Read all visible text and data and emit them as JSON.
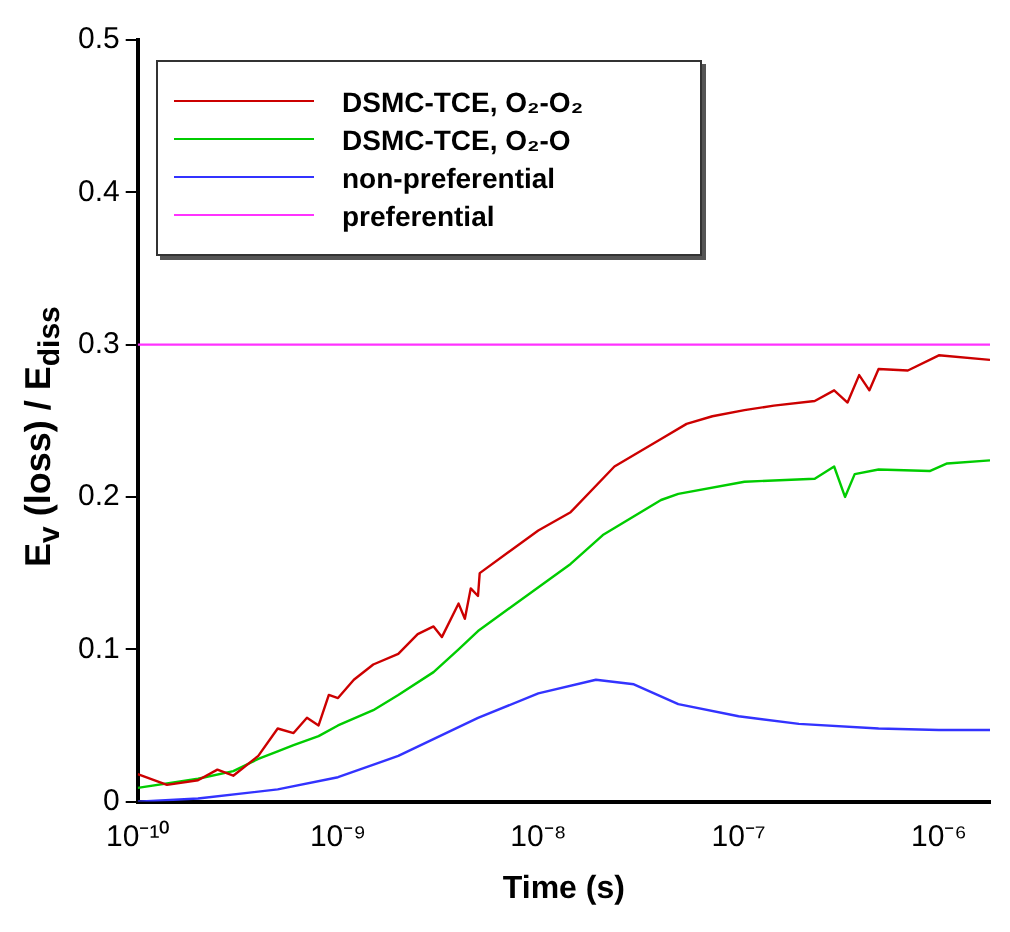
{
  "chart_data": {
    "type": "line",
    "xlabel": "Time (s)",
    "ylabel": "E$_{v}$ (loss) / E$_{diss}$",
    "log": "x",
    "xlim": [
      1e-10,
      1.8e-06
    ],
    "ylim": [
      0,
      0.5
    ],
    "xticks": [
      {
        "value": 1e-10,
        "label": "10⁻¹⁰"
      },
      {
        "value": 1e-09,
        "label": "10⁻⁹"
      },
      {
        "value": 1e-08,
        "label": "10⁻⁸"
      },
      {
        "value": 1e-07,
        "label": "10⁻⁷"
      },
      {
        "value": 1e-06,
        "label": "10⁻⁶"
      }
    ],
    "yticks": [
      0,
      0.1,
      0.2,
      0.3,
      0.4,
      0.5
    ],
    "grid": false,
    "legend": "top left",
    "marker": "none",
    "line_style": "solid",
    "series": [
      {
        "name": "DSMC-TCE, O₂-O₂",
        "color": "#cc0000",
        "x": [
          1e-10,
          1.4e-10,
          2e-10,
          2.5e-10,
          3e-10,
          4e-10,
          5e-10,
          6e-10,
          7e-10,
          8e-10,
          9e-10,
          1e-09,
          1.2e-09,
          1.5e-09,
          2e-09,
          2.5e-09,
          3e-09,
          3.3e-09,
          4e-09,
          4.3e-09,
          4.6e-09,
          5e-09,
          5.1e-09,
          1e-08,
          1.45e-08,
          2.4e-08,
          4.1e-08,
          5.5e-08,
          7.4e-08,
          1.07e-07,
          1.5e-07,
          2.4e-07,
          3e-07,
          3.5e-07,
          4e-07,
          4.5e-07,
          5e-07,
          7e-07,
          1e-06,
          1.8e-06
        ],
        "values": [
          0.018,
          0.011,
          0.014,
          0.021,
          0.017,
          0.03,
          0.048,
          0.045,
          0.055,
          0.05,
          0.07,
          0.068,
          0.08,
          0.09,
          0.097,
          0.11,
          0.115,
          0.108,
          0.13,
          0.12,
          0.14,
          0.135,
          0.15,
          0.178,
          0.19,
          0.22,
          0.238,
          0.248,
          0.253,
          0.257,
          0.26,
          0.263,
          0.27,
          0.262,
          0.28,
          0.27,
          0.284,
          0.283,
          0.293,
          0.29
        ]
      },
      {
        "name": "DSMC-TCE, O₂-O",
        "color": "#00cc00",
        "x": [
          1e-10,
          2e-10,
          3e-10,
          4e-10,
          5e-10,
          6e-10,
          8e-10,
          1e-09,
          1.5e-09,
          2e-09,
          3e-09,
          4e-09,
          5e-09,
          1.45e-08,
          2.1e-08,
          4.1e-08,
          5e-08,
          1.07e-07,
          2.4e-07,
          3e-07,
          3.4e-07,
          3.8e-07,
          5e-07,
          9e-07,
          1.1e-06,
          1.8e-06
        ],
        "values": [
          0.009,
          0.015,
          0.02,
          0.028,
          0.033,
          0.037,
          0.043,
          0.05,
          0.06,
          0.07,
          0.085,
          0.1,
          0.112,
          0.156,
          0.175,
          0.198,
          0.202,
          0.21,
          0.212,
          0.22,
          0.2,
          0.215,
          0.218,
          0.217,
          0.222,
          0.224
        ]
      },
      {
        "name": "non-preferential",
        "color": "#3333ff",
        "x": [
          1e-10,
          2e-10,
          5e-10,
          1e-09,
          2e-09,
          5e-09,
          1e-08,
          1.94e-08,
          3e-08,
          5e-08,
          1e-07,
          2e-07,
          5e-07,
          1e-06,
          1.8e-06
        ],
        "values": [
          0.0,
          0.002,
          0.008,
          0.016,
          0.03,
          0.055,
          0.071,
          0.08,
          0.077,
          0.064,
          0.056,
          0.051,
          0.048,
          0.047,
          0.047
        ]
      },
      {
        "name": "preferential",
        "color": "#ff33ff",
        "x": [
          1e-10,
          1.8e-06
        ],
        "values": [
          0.3,
          0.3
        ]
      }
    ]
  }
}
